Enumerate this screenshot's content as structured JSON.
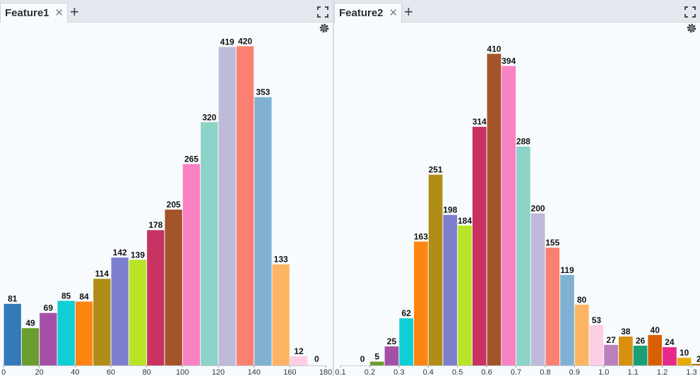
{
  "panels": [
    {
      "tab_label": "Feature1",
      "chart_data": {
        "type": "bar",
        "title": "",
        "xlabel": "",
        "ylabel": "",
        "x_start": 0,
        "bin_width": 10,
        "values": [
          81,
          49,
          69,
          85,
          84,
          114,
          142,
          139,
          178,
          205,
          265,
          320,
          419,
          420,
          353,
          133,
          12,
          0
        ],
        "x_ticks": [
          "0",
          "20",
          "40",
          "60",
          "80",
          "100",
          "120",
          "140",
          "160",
          "180"
        ],
        "xlim": [
          0,
          180
        ],
        "ylim": [
          0,
          440
        ],
        "colors": [
          "#337ab7",
          "#6a9e2e",
          "#a550a7",
          "#10cfd4",
          "#ff8512",
          "#b08d14",
          "#7d7fcd",
          "#b9e326",
          "#c73260",
          "#a3542a",
          "#f882c2",
          "#8dd3c7",
          "#bebada",
          "#fb8072",
          "#80b1d3",
          "#fdb462",
          "#fccde5",
          "#d9d9d9"
        ]
      }
    },
    {
      "tab_label": "Feature2",
      "chart_data": {
        "type": "bar",
        "title": "",
        "xlabel": "",
        "ylabel": "",
        "x_start": 0.15,
        "bin_width": 0.05,
        "values": [
          0,
          5,
          25,
          62,
          163,
          251,
          198,
          184,
          314,
          410,
          394,
          288,
          200,
          155,
          119,
          80,
          53,
          27,
          38,
          26,
          40,
          24,
          10,
          2
        ],
        "x_ticks": [
          "0.1",
          "0.2",
          "0.3",
          "0.4",
          "0.5",
          "0.6",
          "0.7",
          "0.8",
          "0.9",
          "1.0",
          "1.1",
          "1.2",
          "1.3"
        ],
        "xlim": [
          0.1,
          1.3
        ],
        "ylim": [
          0,
          440
        ],
        "colors": [
          "#d9d9d9",
          "#6a9e2e",
          "#a550a7",
          "#10cfd4",
          "#ff8512",
          "#b08d14",
          "#7d7fcd",
          "#b9e326",
          "#c73260",
          "#a3542a",
          "#f882c2",
          "#8dd3c7",
          "#bebada",
          "#fb8072",
          "#80b1d3",
          "#fdb462",
          "#fccde5",
          "#bc80bd",
          "#d8900f",
          "#1b9e77",
          "#d95f02",
          "#e7298a",
          "#e6ab02",
          "#a6761d"
        ]
      }
    }
  ]
}
